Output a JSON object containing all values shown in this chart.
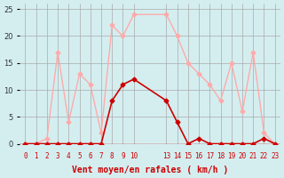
{
  "x": [
    0,
    1,
    2,
    3,
    4,
    5,
    6,
    7,
    8,
    9,
    10,
    13,
    14,
    15,
    16,
    17,
    18,
    19,
    20,
    21,
    22,
    23
  ],
  "avg_wind": [
    0,
    0,
    0,
    0,
    0,
    0,
    0,
    0,
    8,
    11,
    12,
    8,
    4,
    0,
    1,
    0,
    0,
    0,
    0,
    0,
    1,
    0
  ],
  "gust_wind": [
    0,
    0,
    1,
    17,
    4,
    13,
    11,
    2,
    22,
    20,
    24,
    24,
    20,
    15,
    13,
    11,
    8,
    15,
    6,
    17,
    2,
    0
  ],
  "xlabel": "Vent moyen/en rafales ( km/h )",
  "xtick_positions": [
    0,
    1,
    2,
    3,
    4,
    5,
    6,
    7,
    8,
    9,
    10,
    13,
    14,
    15,
    16,
    17,
    18,
    19,
    20,
    21,
    22,
    23
  ],
  "xtick_labels": [
    "0",
    "1",
    "2",
    "3",
    "4",
    "5",
    "6",
    "7",
    "8",
    "9",
    "10",
    "13",
    "14",
    "15",
    "16",
    "17",
    "18",
    "19",
    "20",
    "21",
    "22",
    "23"
  ],
  "ytick_positions": [
    0,
    5,
    10,
    15,
    20,
    25
  ],
  "ytick_labels": [
    "0",
    "5",
    "10",
    "15",
    "20",
    "25"
  ],
  "ylim": [
    0,
    25
  ],
  "xlim": [
    -0.5,
    23.5
  ],
  "bg_color": "#d4eef0",
  "avg_color": "#cc0000",
  "gust_color": "#ffaaaa",
  "grid_color": "#aaaaaa"
}
